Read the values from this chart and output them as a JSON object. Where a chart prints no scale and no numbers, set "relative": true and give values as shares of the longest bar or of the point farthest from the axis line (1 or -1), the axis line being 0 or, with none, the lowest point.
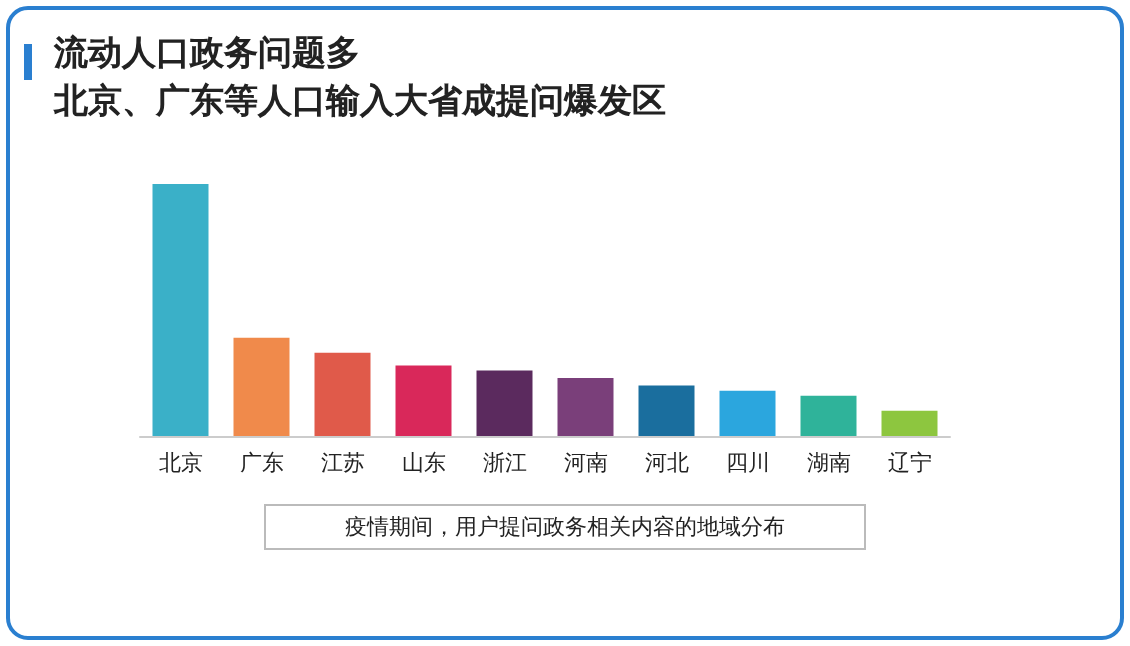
{
  "chart_data": {
    "type": "bar",
    "title": "流动人口政务问题多",
    "subtitle": "北京、广东等人口输入大省成提问爆发区",
    "relative": true,
    "categories": [
      "北京",
      "广东",
      "江苏",
      "山东",
      "浙江",
      "河南",
      "河北",
      "四川",
      "湖南",
      "辽宁"
    ],
    "values": [
      1,
      0.39,
      0.33,
      0.28,
      0.26,
      0.23,
      0.2,
      0.18,
      0.16,
      0.1
    ],
    "colors": [
      "#3ab0c8",
      "#f08a4b",
      "#e05a4a",
      "#d9285a",
      "#5b2a5e",
      "#7a3f7a",
      "#1a6e9e",
      "#2ba6de",
      "#2fb39a",
      "#8dc63f"
    ],
    "annotations": [
      "疫情期间，用户提问政务相关内容的地域分布"
    ]
  }
}
